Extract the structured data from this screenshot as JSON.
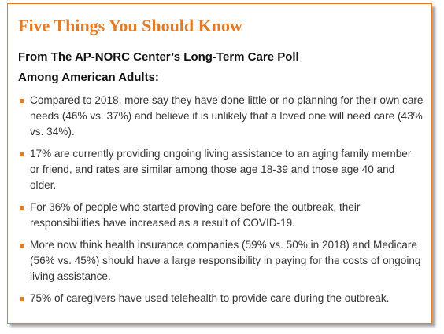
{
  "header": {
    "title": "Five Things You Should Know",
    "subtitle_lines": [
      "From The AP-NORC Center’s Long-Term Care Poll",
      "Among American Adults:"
    ]
  },
  "bullets": [
    "Compared to 2018, more say they have done little or no planning for their own care needs (46% vs. 37%) and believe it is unlikely that a loved one will need care (43% vs. 34%).",
    "17% are currently providing ongoing living assistance to an aging family member or friend, and rates are similar among those age 18-39 and those age 40 and older.",
    "For 36% of people who started proving care before the outbreak, their responsibilities have increased as a result of COVID-19.",
    "More now think health insurance companies (59% vs. 50% in 2018) and Medicare (56% vs. 45%) should have a large responsibility in paying for the costs of ongoing living assistance.",
    "75% of caregivers have used telehealth to provide care during the outbreak."
  ]
}
